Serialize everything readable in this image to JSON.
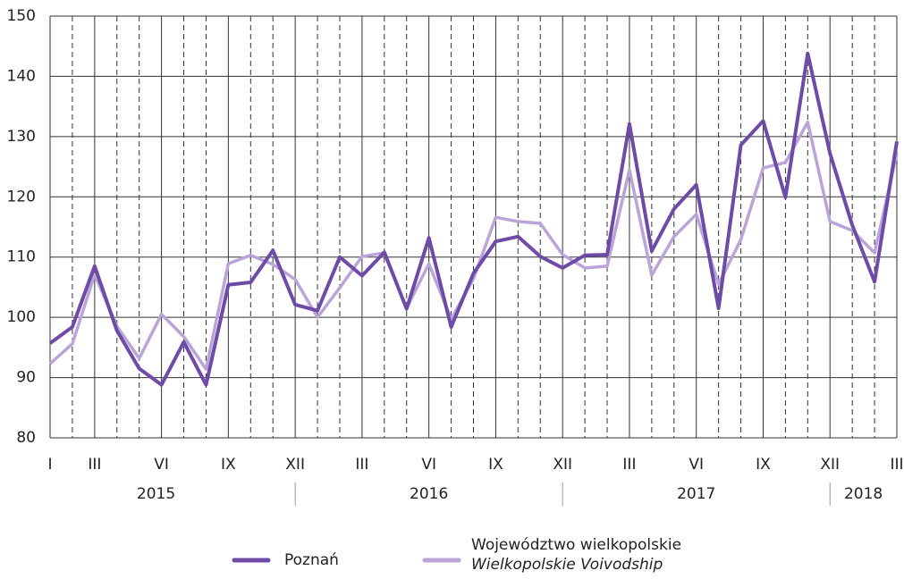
{
  "chart_data": {
    "type": "line",
    "categories": [
      "I",
      null,
      "III",
      null,
      null,
      "VI",
      null,
      null,
      "IX",
      null,
      null,
      "XII",
      null,
      null,
      "III",
      null,
      null,
      "VI",
      null,
      null,
      "IX",
      null,
      null,
      "XII",
      null,
      null,
      "III",
      null,
      null,
      "VI",
      null,
      null,
      "IX",
      null,
      null,
      "XII",
      null,
      null,
      "III"
    ],
    "years": [
      {
        "label": "2015",
        "months": 12
      },
      {
        "label": "2016",
        "months": 12
      },
      {
        "label": "2017",
        "months": 12
      },
      {
        "label": "2018",
        "months": 3
      }
    ],
    "series": [
      {
        "name": "Poznań",
        "color": "#6f4ba8",
        "values": [
          95.7,
          98.4,
          108.5,
          97.8,
          91.5,
          88.8,
          95.9,
          88.8,
          105.4,
          105.8,
          111.1,
          102.1,
          101.1,
          110,
          106.9,
          110.8,
          101.4,
          113.2,
          98.4,
          107.3,
          112.6,
          113.4,
          110.1,
          108.2,
          110.3,
          110.4,
          132.1,
          111,
          118,
          122,
          101.5,
          128.6,
          132.6,
          119.9,
          143.8,
          127.2,
          115.3,
          105.9,
          129.2
        ]
      },
      {
        "name": "Województwo wielkopolskie",
        "name_en": "Wielkopolskie Voivodship",
        "color": "#b9a5d8",
        "values": [
          92.3,
          95.6,
          107.1,
          98.5,
          93.2,
          100.5,
          96.8,
          91.4,
          108.9,
          110.3,
          108.8,
          106.3,
          100,
          104.9,
          110.1,
          110.7,
          101.5,
          108.9,
          99.7,
          106.4,
          116.6,
          115.9,
          115.6,
          110.4,
          108.2,
          108.5,
          124.5,
          107,
          113.4,
          117.1,
          105.5,
          112.9,
          124.8,
          125.7,
          132.4,
          115.9,
          114.4,
          110.7,
          127.2
        ]
      }
    ],
    "ylim": [
      80,
      150
    ],
    "yticks": [
      80,
      90,
      100,
      110,
      120,
      130,
      140,
      150
    ],
    "grid": true
  }
}
